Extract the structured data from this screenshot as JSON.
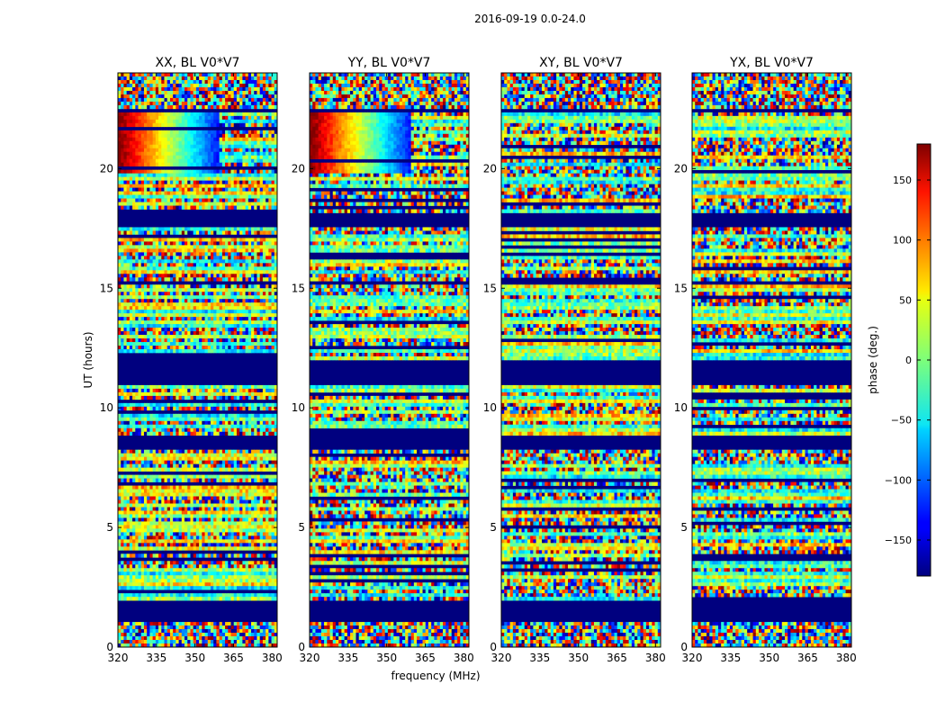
{
  "figure": {
    "suptitle": "2016-09-19 0.0-24.0",
    "xlabel": "frequency (MHz)",
    "ylabel": "UT (hours)"
  },
  "chart_data": {
    "type": "heatmap",
    "title": "2016-09-19 0.0-24.0",
    "xlabel": "frequency (MHz)",
    "ylabel": "UT (hours)",
    "xlim": [
      320,
      382
    ],
    "ylim": [
      0,
      24
    ],
    "xticks": [
      320,
      335,
      350,
      365,
      380
    ],
    "yticks": [
      0,
      5,
      10,
      15,
      20
    ],
    "colormap": "jet",
    "colorbar": {
      "label": "phase (deg.)",
      "range": [
        -180,
        180
      ],
      "ticks": [
        -150,
        -100,
        -50,
        0,
        50,
        100,
        150
      ],
      "tick_labels": [
        "−150",
        "−100",
        "−50",
        "0",
        "50",
        "100",
        "150"
      ]
    },
    "panels": [
      {
        "title": "XX, BL V0*V7",
        "pol": "XX",
        "coherent_high_ut": true
      },
      {
        "title": "YY, BL V0*V7",
        "pol": "YY",
        "coherent_high_ut": true
      },
      {
        "title": "XY, BL V0*V7",
        "pol": "XY",
        "coherent_high_ut": false
      },
      {
        "title": "YX, BL V0*V7",
        "pol": "YX",
        "coherent_high_ut": false
      }
    ],
    "flagged_ut_ranges": [
      [
        0.0,
        0.05
      ],
      [
        1.1,
        2.0
      ],
      [
        8.2,
        8.9
      ],
      [
        10.95,
        11.95
      ],
      [
        15.1,
        15.35
      ],
      [
        17.5,
        18.1
      ],
      [
        22.3,
        22.45
      ]
    ],
    "noise_ut_ranges": [
      [
        22.45,
        24.0
      ],
      [
        0.0,
        1.1
      ]
    ]
  }
}
